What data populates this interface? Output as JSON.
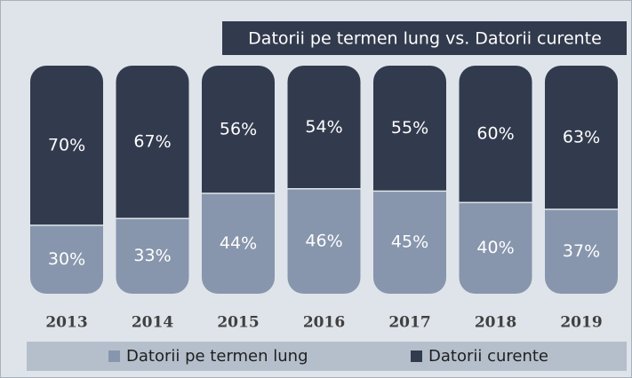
{
  "chart_data": {
    "type": "stacked_bar",
    "title": "Datorii pe termen lung vs. Datorii curente",
    "categories": [
      "2013",
      "2014",
      "2015",
      "2016",
      "2017",
      "2018",
      "2019"
    ],
    "series": [
      {
        "name": "Datorii pe termen lung",
        "color": "#8796ad",
        "values": [
          30,
          33,
          44,
          46,
          45,
          40,
          37
        ]
      },
      {
        "name": "Datorii curente",
        "color": "#323b4e",
        "values": [
          70,
          67,
          56,
          54,
          55,
          60,
          63
        ]
      }
    ],
    "ylim": [
      0,
      100
    ],
    "legend": "bottom"
  }
}
